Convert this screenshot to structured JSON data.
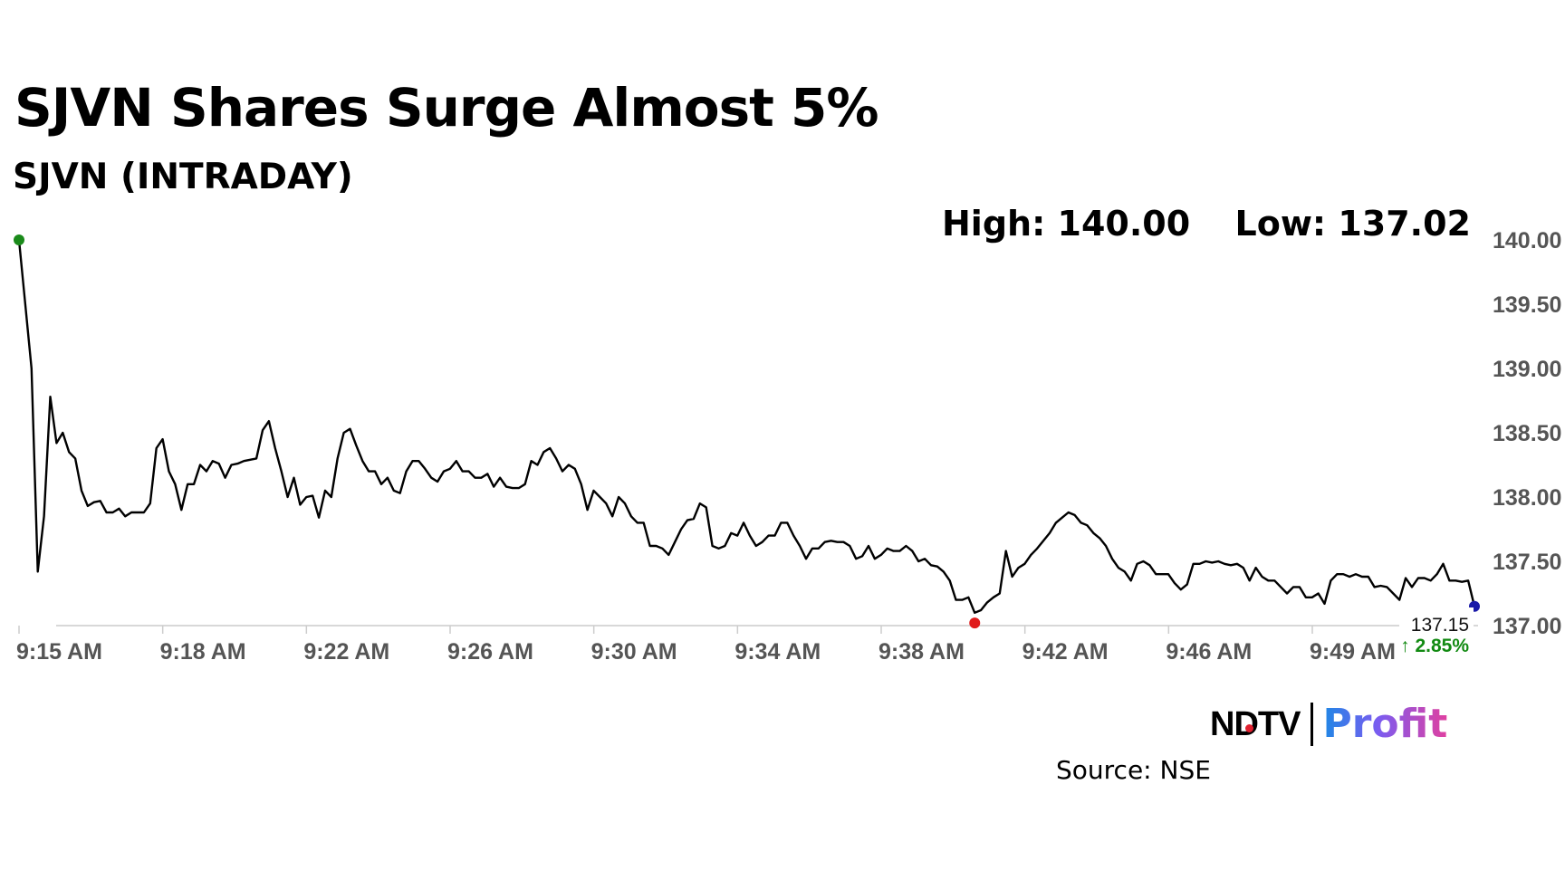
{
  "header": {
    "title": "SJVN Shares Surge Almost 5%",
    "subtitle": "SJVN (INTRADAY)",
    "high_label": "High: 140.00",
    "low_label": "Low: 137.02"
  },
  "brand": {
    "ndtv": "NDTV",
    "profit": "Profit"
  },
  "source": "Source: NSE",
  "colors": {
    "line": "#000000",
    "high_marker": "#1a8a1a",
    "low_marker": "#e01b1b",
    "last_marker": "#1a1aa8",
    "change_positive": "#128a12",
    "axis_text": "#555555",
    "gridline": "#cccccc"
  },
  "chart_data": {
    "type": "line",
    "title": "SJVN (INTRADAY)",
    "xlabel": "",
    "ylabel": "",
    "ylim": [
      137.0,
      140.0
    ],
    "xlim_minutes": [
      0,
      36
    ],
    "x_ticks": [
      "9:15 AM",
      "9:18 AM",
      "9:22 AM",
      "9:26 AM",
      "9:30 AM",
      "9:34 AM",
      "9:38 AM",
      "9:42 AM",
      "9:46 AM",
      "9:49 AM"
    ],
    "y_ticks": [
      "140.00",
      "139.50",
      "139.00",
      "138.50",
      "138.00",
      "137.50",
      "137.00"
    ],
    "grid": false,
    "last_price": "137.15",
    "change": "↑ 2.85%",
    "high": 140.0,
    "low": 137.02,
    "series": [
      {
        "name": "",
        "values": [
          140.0,
          139.5,
          139.0,
          137.42,
          137.85,
          138.78,
          138.42,
          138.5,
          138.35,
          138.3,
          138.05,
          137.93,
          137.96,
          137.97,
          137.88,
          137.88,
          137.91,
          137.85,
          137.88,
          137.88,
          137.88,
          137.95,
          138.38,
          138.45,
          138.2,
          138.1,
          137.9,
          138.1,
          138.1,
          138.25,
          138.2,
          138.28,
          138.26,
          138.15,
          138.25,
          138.26,
          138.28,
          138.29,
          138.3,
          138.52,
          138.59,
          138.38,
          138.2,
          138.0,
          138.15,
          137.94,
          138.0,
          138.01,
          137.84,
          138.05,
          138.0,
          138.3,
          138.5,
          138.53,
          138.4,
          138.28,
          138.2,
          138.2,
          138.1,
          138.15,
          138.05,
          138.03,
          138.2,
          138.28,
          138.28,
          138.22,
          138.15,
          138.12,
          138.2,
          138.22,
          138.28,
          138.2,
          138.2,
          138.15,
          138.15,
          138.18,
          138.08,
          138.15,
          138.08,
          138.07,
          138.07,
          138.1,
          138.28,
          138.25,
          138.35,
          138.38,
          138.3,
          138.2,
          138.25,
          138.22,
          138.1,
          137.9,
          138.05,
          138.0,
          137.95,
          137.85,
          138.0,
          137.95,
          137.85,
          137.8,
          137.8,
          137.62,
          137.62,
          137.6,
          137.55,
          137.65,
          137.75,
          137.82,
          137.83,
          137.95,
          137.92,
          137.62,
          137.6,
          137.62,
          137.72,
          137.7,
          137.8,
          137.7,
          137.62,
          137.65,
          137.7,
          137.7,
          137.8,
          137.8,
          137.7,
          137.62,
          137.52,
          137.6,
          137.6,
          137.65,
          137.66,
          137.65,
          137.65,
          137.62,
          137.52,
          137.54,
          137.62,
          137.52,
          137.55,
          137.6,
          137.58,
          137.58,
          137.62,
          137.58,
          137.5,
          137.52,
          137.47,
          137.46,
          137.42,
          137.35,
          137.2,
          137.2,
          137.22,
          137.1,
          137.12,
          137.18,
          137.22,
          137.25,
          137.58,
          137.38,
          137.45,
          137.48,
          137.55,
          137.6,
          137.66,
          137.72,
          137.8,
          137.84,
          137.88,
          137.86,
          137.8,
          137.78,
          137.72,
          137.68,
          137.62,
          137.52,
          137.45,
          137.42,
          137.35,
          137.48,
          137.5,
          137.47,
          137.4,
          137.4,
          137.4,
          137.33,
          137.28,
          137.32,
          137.48,
          137.48,
          137.5,
          137.49,
          137.5,
          137.48,
          137.47,
          137.48,
          137.45,
          137.35,
          137.45,
          137.38,
          137.35,
          137.35,
          137.3,
          137.25,
          137.3,
          137.3,
          137.22,
          137.22,
          137.25,
          137.17,
          137.35,
          137.4,
          137.4,
          137.38,
          137.4,
          137.38,
          137.38,
          137.3,
          137.31,
          137.3,
          137.25,
          137.2,
          137.37,
          137.3,
          137.37,
          137.37,
          137.35,
          137.4,
          137.48,
          137.35,
          137.35,
          137.34,
          137.35,
          137.15
        ]
      }
    ]
  }
}
